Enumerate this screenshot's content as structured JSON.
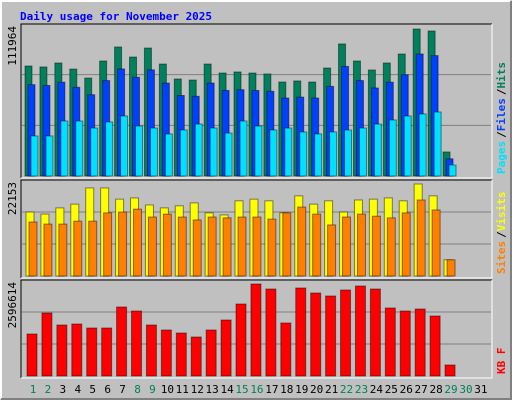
{
  "chart_data": [
    {
      "type": "bar",
      "title": "Daily usage for November 2025",
      "ylim": [
        0,
        111964
      ],
      "yticks": [
        111964
      ],
      "separator": "/",
      "series": [
        {
          "name": "Hits",
          "color": "#00805c",
          "values": [
            83200,
            82500,
            85500,
            80900,
            74100,
            87000,
            97600,
            90000,
            96800,
            84700,
            73400,
            72600,
            84700,
            77900,
            78700,
            77900,
            77200,
            71100,
            71900,
            71100,
            81700,
            99900,
            87000,
            80200,
            85500,
            92300,
            111200,
            109700,
            18200,
            null,
            null
          ]
        },
        {
          "name": "Files",
          "color": "#0040ff",
          "values": [
            69100,
            68500,
            71000,
            67100,
            61500,
            72200,
            81000,
            74700,
            80300,
            70300,
            60900,
            60300,
            70300,
            64700,
            65300,
            64700,
            64100,
            59000,
            59700,
            59000,
            67800,
            82900,
            72200,
            66600,
            71000,
            76600,
            92300,
            91100,
            13000,
            null,
            null
          ]
        },
        {
          "name": "Pages",
          "color": "#00e0ff",
          "values": [
            30300,
            30300,
            41600,
            41600,
            36300,
            40900,
            45400,
            37800,
            36300,
            31800,
            34800,
            39300,
            36300,
            32500,
            41600,
            37800,
            34800,
            36300,
            33300,
            31800,
            33300,
            34800,
            36300,
            39300,
            42400,
            45400,
            46900,
            48400,
            8300,
            null,
            null
          ]
        }
      ]
    },
    {
      "type": "bar",
      "ylim": [
        0,
        22153
      ],
      "yticks": [
        22153
      ],
      "separator": "/",
      "series": [
        {
          "name": "Visits",
          "color": "#ffff00",
          "values": [
            15400,
            14900,
            16400,
            17300,
            21200,
            21200,
            18500,
            18800,
            17100,
            16400,
            16900,
            17600,
            15200,
            14700,
            18100,
            18500,
            18100,
            15200,
            19300,
            17300,
            18100,
            15400,
            18300,
            18500,
            18800,
            18100,
            22150,
            19300,
            3900,
            null,
            null
          ]
        },
        {
          "name": "Sites",
          "color": "#ff8000",
          "values": [
            13000,
            12500,
            12500,
            13200,
            13200,
            15200,
            15400,
            16100,
            14200,
            14900,
            14200,
            13500,
            14200,
            14000,
            14200,
            14200,
            13700,
            15200,
            16600,
            14900,
            12300,
            14200,
            14900,
            14400,
            14000,
            15200,
            18300,
            15900,
            3900,
            null,
            null
          ]
        }
      ]
    },
    {
      "type": "bar",
      "ylim": [
        0,
        2596614
      ],
      "yticks": [
        2596614
      ],
      "categories": [
        1,
        2,
        3,
        4,
        5,
        6,
        7,
        8,
        9,
        10,
        11,
        12,
        13,
        14,
        15,
        16,
        17,
        18,
        19,
        20,
        21,
        22,
        23,
        24,
        25,
        26,
        27,
        28,
        29,
        30,
        31
      ],
      "highlight": [
        1,
        2,
        8,
        9,
        15,
        16,
        22,
        23,
        29,
        30
      ],
      "highlight_color": "#00805c",
      "series": [
        {
          "name": "KB F",
          "color": "#ff0000",
          "values": [
            1185400,
            1778100,
            1439400,
            1467600,
            1354800,
            1354800,
            1947500,
            1834600,
            1439400,
            1298300,
            1213600,
            1100700,
            1298300,
            1580500,
            2032100,
            2596614,
            2455500,
            1495900,
            2483700,
            2342600,
            2257900,
            2427300,
            2540200,
            2455500,
            1919200,
            1834600,
            1891000,
            1693400,
            310500,
            null,
            null
          ]
        }
      ]
    }
  ]
}
